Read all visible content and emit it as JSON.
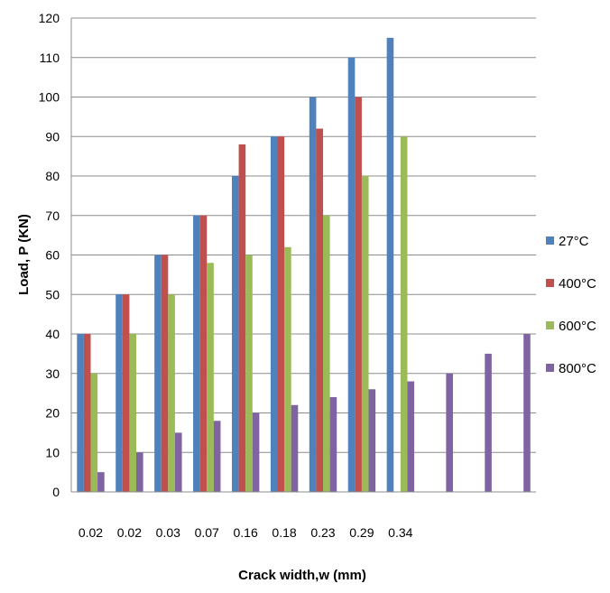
{
  "chart_data": {
    "type": "bar",
    "title": "",
    "xlabel": "Crack width,w (mm)",
    "ylabel": "Load, P (KN)",
    "ylim": [
      0,
      120
    ],
    "yticks": [
      0,
      10,
      20,
      30,
      40,
      50,
      60,
      70,
      80,
      90,
      100,
      110,
      120
    ],
    "grid": "horizontal",
    "legend_position": "right",
    "categories": [
      "0.02",
      "0.02",
      "0.03",
      "0.07",
      "0.16",
      "0.18",
      "0.23",
      "0.29",
      "0.34",
      "",
      "",
      ""
    ],
    "series": [
      {
        "name": "27°C",
        "color": "#4F81BD",
        "values": [
          40,
          50,
          60,
          70,
          80,
          90,
          100,
          110,
          115,
          null,
          null,
          null
        ]
      },
      {
        "name": "400°C",
        "color": "#C0504D",
        "values": [
          40,
          50,
          60,
          70,
          88,
          90,
          92,
          100,
          null,
          null,
          null,
          null
        ]
      },
      {
        "name": "600°C",
        "color": "#9BBB59",
        "values": [
          30,
          40,
          50,
          58,
          60,
          62,
          70,
          80,
          90,
          null,
          null,
          null
        ]
      },
      {
        "name": "800°C",
        "color": "#8064A2",
        "values": [
          5,
          10,
          15,
          18,
          20,
          22,
          24,
          26,
          28,
          30,
          35,
          40
        ]
      }
    ]
  }
}
